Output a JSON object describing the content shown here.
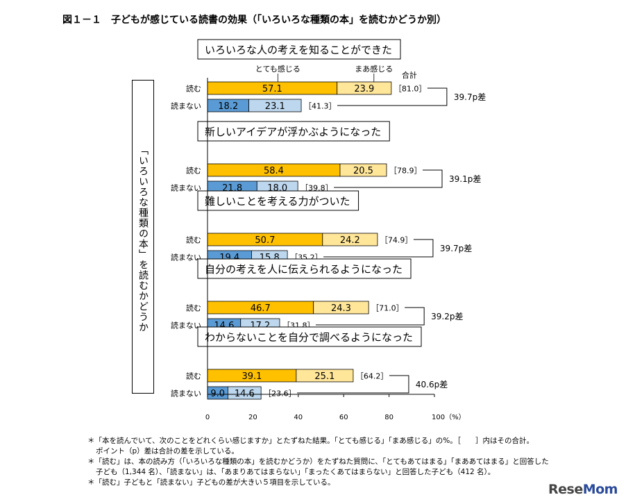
{
  "figure_title": "図１－１　子どもが感じている読書の効果（「いろいろな種類の本」を読むかどうか別）",
  "group_axis_label": "「いろいろな種類の本」を読むかどうか",
  "chart_data": {
    "type": "bar",
    "orientation": "horizontal",
    "stacked": true,
    "legend": [
      "とても感じる",
      "まあ感じる"
    ],
    "total_label": "合計",
    "row_labels": [
      "読む",
      "読まない"
    ],
    "x_ticks": [
      "0",
      "20",
      "40",
      "60",
      "80",
      "100（%）"
    ],
    "xlim": [
      0,
      100
    ],
    "grid": false,
    "colors": {
      "read_strong": "#ffc000",
      "read_some": "#ffe699",
      "noread_strong": "#5b9bd5",
      "noread_some": "#bdd7ee"
    },
    "groups": [
      {
        "title": "いろいろな人の考えを知ることができた",
        "read": {
          "strong": 57.1,
          "some": 23.9,
          "total": "［81.0］"
        },
        "noread": {
          "strong": 18.2,
          "some": 23.1,
          "total": "［41.3］"
        },
        "diff": "39.7p差"
      },
      {
        "title": "新しいアイデアが浮かぶようになった",
        "read": {
          "strong": 58.4,
          "some": 20.5,
          "total": "［78.9］"
        },
        "noread": {
          "strong": 21.8,
          "some": 18.0,
          "total": "［39.8］"
        },
        "diff": "39.1p差"
      },
      {
        "title": "難しいことを考える力がついた",
        "read": {
          "strong": 50.7,
          "some": 24.2,
          "total": "［74.9］"
        },
        "noread": {
          "strong": 19.4,
          "some": 15.8,
          "total": "［35.2］"
        },
        "diff": "39.7p差"
      },
      {
        "title": "自分の考えを人に伝えられるようになった",
        "read": {
          "strong": 46.7,
          "some": 24.3,
          "total": "［71.0］"
        },
        "noread": {
          "strong": 14.6,
          "some": 17.2,
          "total": "［31.8］"
        },
        "diff": "39.2p差"
      },
      {
        "title": "わからないことを自分で調べるようになった",
        "read": {
          "strong": 39.1,
          "some": 25.1,
          "total": "［64.2］"
        },
        "noread": {
          "strong": 9.0,
          "some": 14.6,
          "total": "［23.6］"
        },
        "diff": "40.6p差"
      }
    ]
  },
  "notes": [
    "＊「本を読んでいて、次のことをどれくらい感じますか」とたずねた結果。「とても感じる」「まあ感じる」の%。［　　］内はその合計。",
    "ポイント（p）差は合計の差を示している。",
    "＊「読む」は、本の読み方（「いろいろな種類の本」を読むかどうか）をたずねた質問に、「とてもあてはまる」「まああてはまる」と回答した",
    "子ども（1,344 名）、「読まない」は、「あまりあてはまらない」「まったくあてはまらない」と回答した子ども（412 名）。",
    "＊「読む」子どもと「読まない」子どもの差が大きい５項目を示している。"
  ],
  "logo": {
    "part1": "Rese",
    "part2": "Mom"
  }
}
